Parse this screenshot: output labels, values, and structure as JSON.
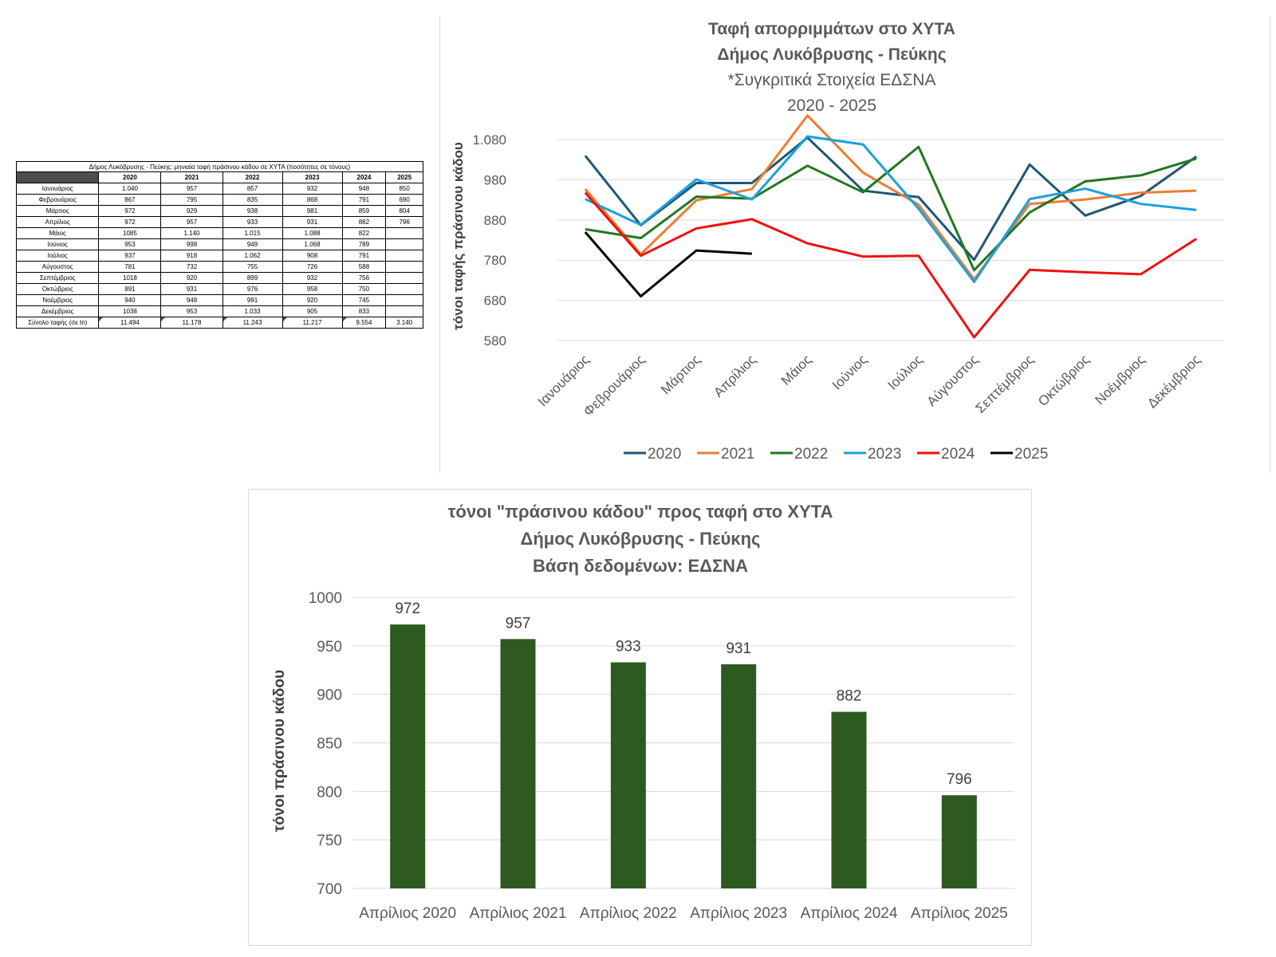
{
  "table": {
    "title": "Δήμος Λυκόβρυσης - Πεύκης: μηνιαία ταφή πράσινου κάδου σε ΧΥΤΑ (ποσότητες σε τόνους)",
    "headers": [
      "",
      "2020",
      "2021",
      "2022",
      "2023",
      "2024",
      "2025"
    ],
    "rows": [
      {
        "month": "Ιανουάριος",
        "values": [
          "1.040",
          "957",
          "857",
          "932",
          "948",
          "850"
        ]
      },
      {
        "month": "Φεβρουάριος",
        "values": [
          "867",
          "795",
          "835",
          "868",
          "791",
          "690"
        ]
      },
      {
        "month": "Μάρτιος",
        "values": [
          "972",
          "929",
          "938",
          "981",
          "859",
          "804"
        ]
      },
      {
        "month": "Απρίλιος",
        "values": [
          "972",
          "957",
          "933",
          "931",
          "882",
          "796"
        ]
      },
      {
        "month": "Μάιος",
        "values": [
          "1085",
          "1.140",
          "1.015",
          "1.088",
          "822",
          ""
        ]
      },
      {
        "month": "Ιούνιος",
        "values": [
          "953",
          "998",
          "949",
          "1.068",
          "789",
          ""
        ]
      },
      {
        "month": "Ιούλιος",
        "values": [
          "937",
          "918",
          "1.062",
          "908",
          "791",
          ""
        ]
      },
      {
        "month": "Αύγουστος",
        "values": [
          "781",
          "732",
          "755",
          "726",
          "588",
          ""
        ]
      },
      {
        "month": "Σεπτέμβριος",
        "values": [
          "1018",
          "920",
          "899",
          "932",
          "756",
          ""
        ]
      },
      {
        "month": "Οκτώβριος",
        "values": [
          "891",
          "931",
          "976",
          "958",
          "750",
          ""
        ]
      },
      {
        "month": "Νοέμβριος",
        "values": [
          "940",
          "948",
          "991",
          "920",
          "745",
          ""
        ]
      },
      {
        "month": "Δεκέμβριος",
        "values": [
          "1038",
          "953",
          "1.033",
          "905",
          "833",
          ""
        ]
      }
    ],
    "total": {
      "label": "Σύνολο ταφής (σε tn)",
      "values": [
        "11.494",
        "11.178",
        "11.243",
        "11.217",
        "9.554",
        "3.140"
      ]
    }
  },
  "chart_data": [
    {
      "type": "line",
      "title": [
        "Ταφή απορριμμάτων στο ΧΥΤΑ",
        "Δήμος Λυκόβρυσης - Πεύκης"
      ],
      "subtitle": [
        "*Συγκριτικά Στοιχεία ΕΔΣΝΑ",
        "2020 - 2025"
      ],
      "ylabel": "τόνοι ταφής πράσινου κάδου",
      "xlabel": "",
      "categories": [
        "Ιανουάριος",
        "Φεβρουάριος",
        "Μάρτιος",
        "Απρίλιος",
        "Μάιος",
        "Ιούνιος",
        "Ιούλιος",
        "Αύγουστος",
        "Σεπτέμβριος",
        "Οκτώβριος",
        "Νοέμβριος",
        "Δεκέμβριος"
      ],
      "yticks": [
        "580",
        "680",
        "780",
        "880",
        "980",
        "1.080"
      ],
      "ylim": [
        580,
        1100
      ],
      "grid": true,
      "legend_position": "bottom",
      "series": [
        {
          "name": "2020",
          "color": "#1f5673",
          "values": [
            1040,
            867,
            972,
            972,
            1085,
            953,
            937,
            781,
            1018,
            891,
            940,
            1038
          ]
        },
        {
          "name": "2021",
          "color": "#ed7d31",
          "values": [
            957,
            795,
            929,
            957,
            1140,
            998,
            918,
            732,
            920,
            931,
            948,
            953
          ]
        },
        {
          "name": "2022",
          "color": "#217821",
          "values": [
            857,
            835,
            938,
            933,
            1015,
            949,
            1062,
            755,
            899,
            976,
            991,
            1033
          ]
        },
        {
          "name": "2023",
          "color": "#1ba1dc",
          "values": [
            932,
            868,
            981,
            931,
            1088,
            1068,
            908,
            726,
            932,
            958,
            920,
            905
          ]
        },
        {
          "name": "2024",
          "color": "#ee1111",
          "values": [
            948,
            791,
            859,
            882,
            822,
            789,
            791,
            588,
            756,
            750,
            745,
            833
          ]
        },
        {
          "name": "2025",
          "color": "#000000",
          "values": [
            850,
            690,
            804,
            796,
            null,
            null,
            null,
            null,
            null,
            null,
            null,
            null
          ]
        }
      ]
    },
    {
      "type": "bar",
      "title": [
        "τόνοι \"πράσινου κάδου\" προς ταφή στο ΧΥΤΑ",
        "Δήμος Λυκόβρυσης - Πεύκης",
        "Βάση δεδομένων: ΕΔΣΝΑ"
      ],
      "ylabel": "τόνοι πράσινου κάδου",
      "xlabel": "",
      "categories": [
        "Απρίλιος 2020",
        "Απρίλιος 2021",
        "Απρίλιος 2022",
        "Απρίλιος  2023",
        "Απρίλιος 2024",
        "Απρίλιος  2025"
      ],
      "values": [
        972,
        957,
        933,
        931,
        882,
        796
      ],
      "yticks": [
        "700",
        "750",
        "800",
        "850",
        "900",
        "950",
        "1000"
      ],
      "ylim": [
        700,
        1000
      ],
      "grid": true,
      "bar_color": "#2d5a1f"
    }
  ]
}
